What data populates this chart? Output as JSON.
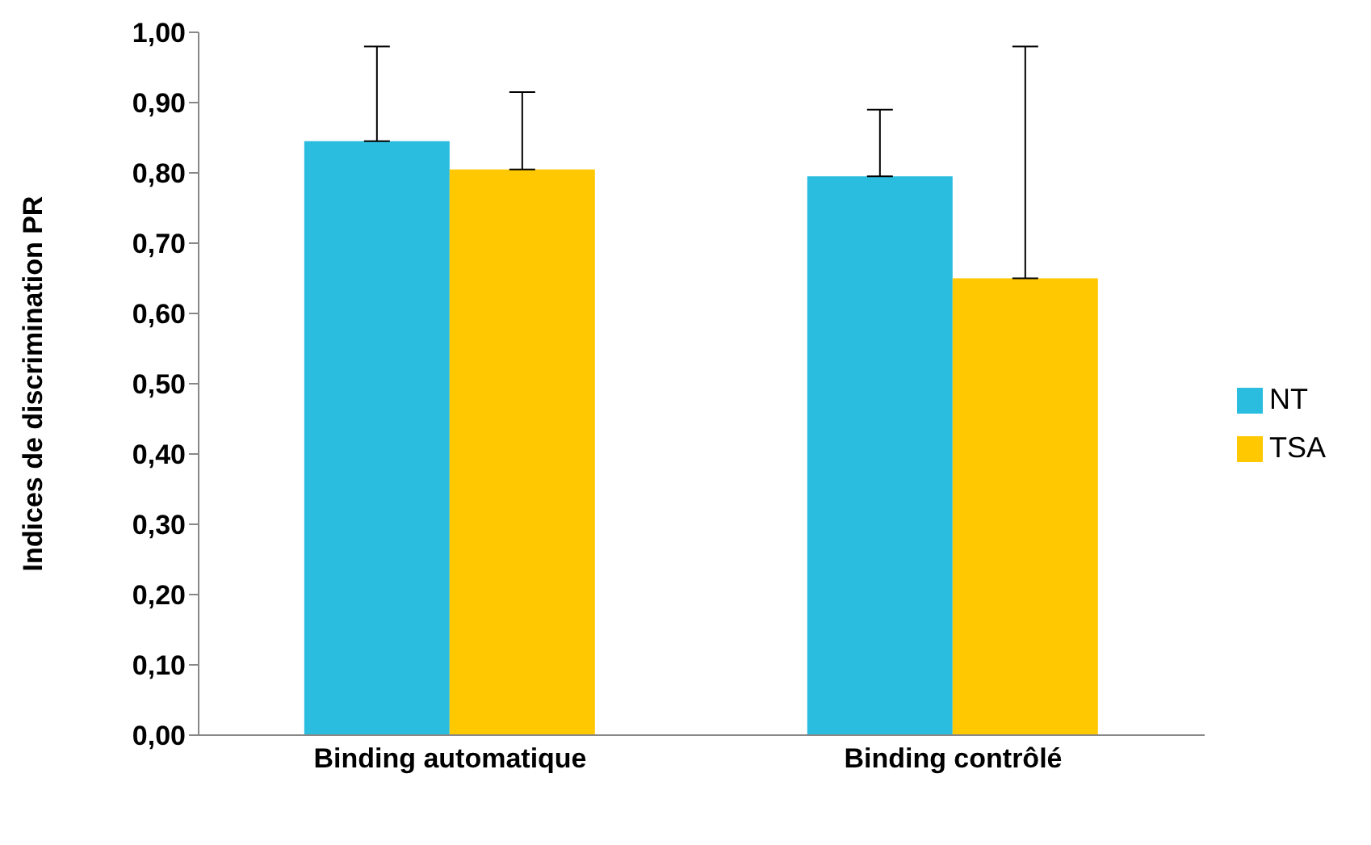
{
  "chart_data": {
    "type": "bar",
    "ylabel": "Indices de discrimination PR",
    "categories": [
      "Binding automatique",
      "Binding contrôlé"
    ],
    "series": [
      {
        "name": "NT",
        "color": "#2bbde0",
        "values": [
          0.845,
          0.795
        ],
        "errors": [
          [
            0.845,
            0.98
          ],
          [
            0.795,
            0.89
          ]
        ]
      },
      {
        "name": "TSA",
        "color": "#ffc800",
        "values": [
          0.805,
          0.65
        ],
        "errors": [
          [
            0.805,
            0.915
          ],
          [
            0.65,
            0.98
          ]
        ]
      }
    ],
    "ylim": [
      0,
      1
    ],
    "yticks": [
      {
        "value": 0,
        "label": "0,00"
      },
      {
        "value": 0.1,
        "label": "0,10"
      },
      {
        "value": 0.2,
        "label": "0,20"
      },
      {
        "value": 0.3,
        "label": "0,30"
      },
      {
        "value": 0.4,
        "label": "0,40"
      },
      {
        "value": 0.5,
        "label": "0,50"
      },
      {
        "value": 0.6,
        "label": "0,60"
      },
      {
        "value": 0.7,
        "label": "0,70"
      },
      {
        "value": 0.8,
        "label": "0,80"
      },
      {
        "value": 0.9,
        "label": "0,90"
      },
      {
        "value": 1,
        "label": "1,00"
      }
    ],
    "grid": false,
    "legend": "right"
  }
}
